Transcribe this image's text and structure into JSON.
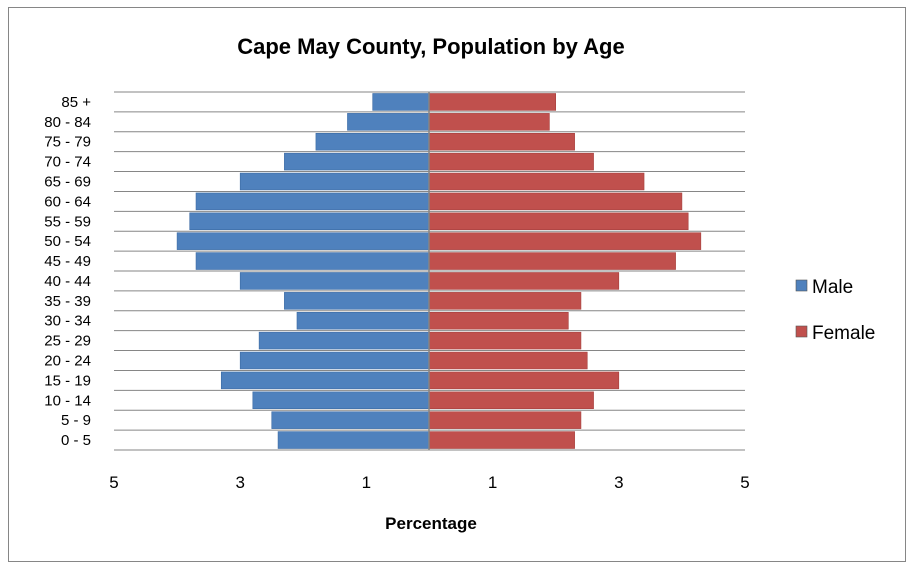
{
  "chart_data": {
    "type": "bar",
    "orientation": "horizontal",
    "subtype": "population-pyramid",
    "title": "Cape May County, Population by Age",
    "xlabel": "Percentage",
    "ylabel": "",
    "categories": [
      "0 - 5",
      "5 - 9",
      "10 - 14",
      "15 - 19",
      "20 - 24",
      "25 - 29",
      "30 - 34",
      "35 - 39",
      "40 - 44",
      "45 - 49",
      "50 - 54",
      "55 - 59",
      "60 - 64",
      "65 - 69",
      "70 - 74",
      "75 - 79",
      "80 - 84",
      "85 +"
    ],
    "series": [
      {
        "name": "Male",
        "color": "#4f81bd",
        "direction": "left",
        "values": [
          2.4,
          2.5,
          2.8,
          3.3,
          3.0,
          2.7,
          2.1,
          2.3,
          3.0,
          3.7,
          4.0,
          3.8,
          3.7,
          3.0,
          2.3,
          1.8,
          1.3,
          0.9
        ]
      },
      {
        "name": "Female",
        "color": "#c0504d",
        "direction": "right",
        "values": [
          2.3,
          2.4,
          2.6,
          3.0,
          2.5,
          2.4,
          2.2,
          2.4,
          3.0,
          3.9,
          4.3,
          4.1,
          4.0,
          3.4,
          2.6,
          2.3,
          1.9,
          2.0
        ]
      }
    ],
    "xlim": [
      -5,
      5
    ],
    "x_ticks": [
      -5,
      -3,
      -1,
      1,
      3,
      5
    ],
    "x_tick_labels": [
      "5",
      "3",
      "1",
      "1",
      "3",
      "5"
    ],
    "grid": "horizontal",
    "legend_position": "right"
  }
}
